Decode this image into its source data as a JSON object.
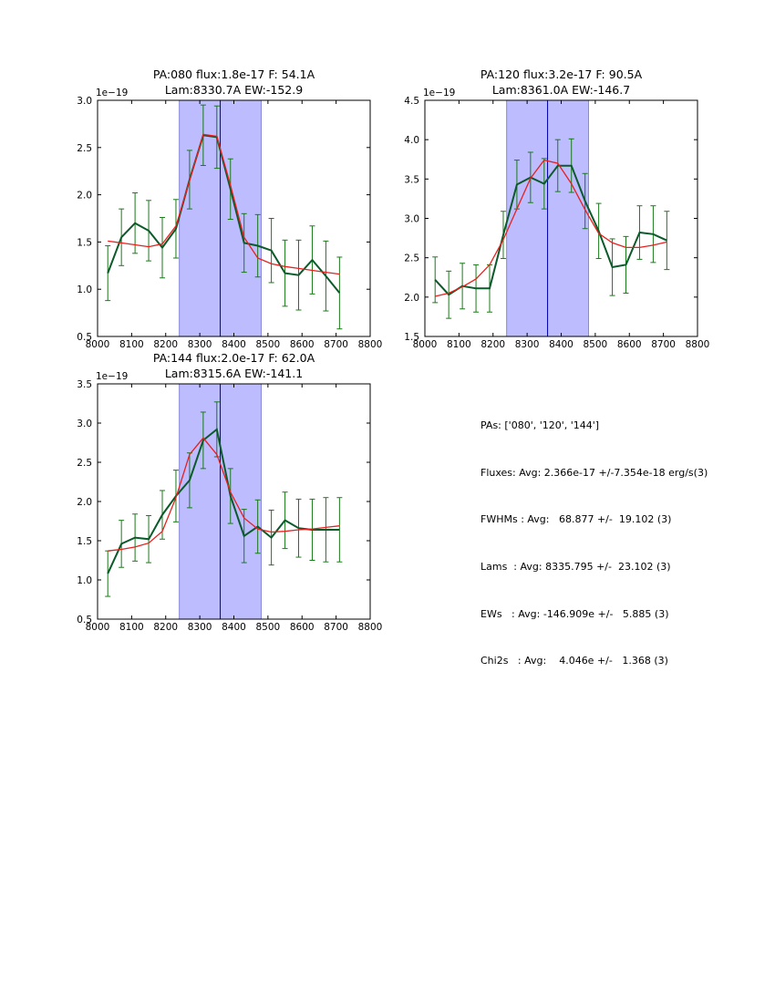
{
  "colors": {
    "data_line": "#0b5a2a",
    "errorbar": "#1a7a1a",
    "model": "#e8201e",
    "band_fill": "#bcbcff",
    "band_edge": "#5050c8",
    "center_line": "#0000b0"
  },
  "chart_data": [
    {
      "type": "line",
      "title_line1": "PA:080 flux:1.8e-17 F: 54.1A",
      "title_line2": "Lam:8330.7A EW:-152.9",
      "y_offset_label": "1e−19",
      "xlim": [
        8000,
        8800
      ],
      "ylim": [
        0.5,
        3.0
      ],
      "xticks": [
        "8000",
        "8100",
        "8200",
        "8300",
        "8400",
        "8500",
        "8600",
        "8700",
        "8800"
      ],
      "yticks": [
        "0.5",
        "1.0",
        "1.5",
        "2.0",
        "2.5",
        "3.0"
      ],
      "band": [
        8240,
        8480
      ],
      "center": 8360,
      "x": [
        8030,
        8070,
        8110,
        8150,
        8190,
        8230,
        8270,
        8310,
        8350,
        8390,
        8430,
        8470,
        8510,
        8550,
        8590,
        8630,
        8670,
        8710
      ],
      "data": [
        1.17,
        1.55,
        1.7,
        1.62,
        1.44,
        1.64,
        2.16,
        2.63,
        2.61,
        2.06,
        1.49,
        1.46,
        1.41,
        1.17,
        1.15,
        1.31,
        1.14,
        0.96
      ],
      "err": [
        0.29,
        0.3,
        0.32,
        0.32,
        0.32,
        0.31,
        0.31,
        0.32,
        0.33,
        0.32,
        0.31,
        0.33,
        0.34,
        0.35,
        0.37,
        0.36,
        0.37,
        0.38
      ],
      "model": [
        1.51,
        1.49,
        1.47,
        1.45,
        1.48,
        1.67,
        2.15,
        2.64,
        2.62,
        2.1,
        1.55,
        1.33,
        1.27,
        1.24,
        1.22,
        1.2,
        1.18,
        1.16
      ]
    },
    {
      "type": "line",
      "title_line1": "PA:120 flux:3.2e-17 F: 90.5A",
      "title_line2": "Lam:8361.0A EW:-146.7",
      "y_offset_label": "1e−19",
      "xlim": [
        8000,
        8800
      ],
      "ylim": [
        1.5,
        4.5
      ],
      "xticks": [
        "8000",
        "8100",
        "8200",
        "8300",
        "8400",
        "8500",
        "8600",
        "8700",
        "8800"
      ],
      "yticks": [
        "1.5",
        "2.0",
        "2.5",
        "3.0",
        "3.5",
        "4.0",
        "4.5"
      ],
      "band": [
        8240,
        8480
      ],
      "center": 8360,
      "x": [
        8030,
        8070,
        8110,
        8150,
        8190,
        8230,
        8270,
        8310,
        8350,
        8390,
        8430,
        8470,
        8510,
        8550,
        8590,
        8630,
        8670,
        8710
      ],
      "data": [
        2.22,
        2.03,
        2.14,
        2.11,
        2.11,
        2.79,
        3.43,
        3.52,
        3.44,
        3.67,
        3.67,
        3.22,
        2.84,
        2.38,
        2.41,
        2.82,
        2.8,
        2.72
      ],
      "err": [
        0.29,
        0.3,
        0.29,
        0.3,
        0.3,
        0.3,
        0.31,
        0.32,
        0.32,
        0.33,
        0.34,
        0.35,
        0.35,
        0.36,
        0.36,
        0.34,
        0.36,
        0.37
      ],
      "model": [
        2.01,
        2.05,
        2.13,
        2.23,
        2.41,
        2.73,
        3.12,
        3.51,
        3.74,
        3.7,
        3.44,
        3.11,
        2.81,
        2.69,
        2.63,
        2.63,
        2.66,
        2.7
      ]
    },
    {
      "type": "line",
      "title_line1": "PA:144 flux:2.0e-17 F: 62.0A",
      "title_line2": "Lam:8315.6A EW:-141.1",
      "y_offset_label": "1e−19",
      "xlim": [
        8000,
        8800
      ],
      "ylim": [
        0.5,
        3.5
      ],
      "xticks": [
        "8000",
        "8100",
        "8200",
        "8300",
        "8400",
        "8500",
        "8600",
        "8700",
        "8800"
      ],
      "yticks": [
        "0.5",
        "1.0",
        "1.5",
        "2.0",
        "2.5",
        "3.0",
        "3.5"
      ],
      "band": [
        8240,
        8480
      ],
      "center": 8360,
      "x": [
        8030,
        8070,
        8110,
        8150,
        8190,
        8230,
        8270,
        8310,
        8350,
        8390,
        8430,
        8470,
        8510,
        8550,
        8590,
        8630,
        8670,
        8710
      ],
      "data": [
        1.08,
        1.46,
        1.54,
        1.52,
        1.83,
        2.07,
        2.27,
        2.78,
        2.92,
        2.07,
        1.56,
        1.68,
        1.54,
        1.76,
        1.66,
        1.64,
        1.64,
        1.64
      ],
      "err": [
        0.29,
        0.3,
        0.3,
        0.3,
        0.31,
        0.33,
        0.35,
        0.36,
        0.35,
        0.35,
        0.34,
        0.34,
        0.35,
        0.36,
        0.37,
        0.39,
        0.41,
        0.41
      ],
      "model": [
        1.37,
        1.39,
        1.42,
        1.47,
        1.62,
        2.05,
        2.6,
        2.81,
        2.6,
        2.12,
        1.79,
        1.65,
        1.61,
        1.62,
        1.64,
        1.65,
        1.67,
        1.69
      ]
    }
  ],
  "stats": {
    "pas": "PAs: ['080', '120', '144']",
    "fluxes": "Fluxes: Avg: 2.366e-17 +/-7.354e-18 erg/s(3)",
    "fwhms": "FWHMs : Avg:   68.877 +/-  19.102 (3)",
    "lams": "Lams  : Avg: 8335.795 +/-  23.102 (3)",
    "ews": "EWs   : Avg: -146.909e +/-   5.885 (3)",
    "chi2s": "Chi2s   : Avg:    4.046e +/-   1.368 (3)"
  }
}
